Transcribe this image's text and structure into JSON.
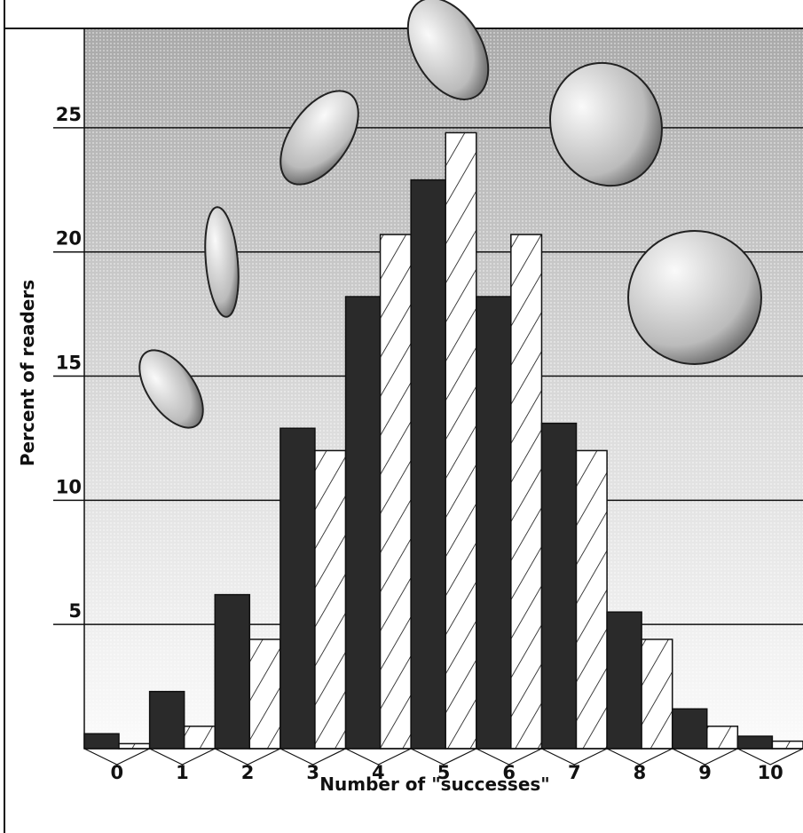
{
  "chart_data": {
    "type": "bar",
    "categories": [
      "0",
      "1",
      "2",
      "3",
      "4",
      "5",
      "6",
      "7",
      "8",
      "9",
      "10"
    ],
    "x_label": "Number of \"successes\"",
    "y_label": "Percent of readers",
    "series": [
      {
        "color": "#2a2a2a",
        "values": [
          0.6,
          2.3,
          6.2,
          12.9,
          18.2,
          22.9,
          18.2,
          13.1,
          5.5,
          1.6,
          0.5
        ]
      },
      {
        "color": "#ffffff",
        "pattern": "hatch",
        "values": [
          0.2,
          0.9,
          4.4,
          12.0,
          20.7,
          24.8,
          20.7,
          12.0,
          4.4,
          0.9,
          0.3
        ]
      }
    ],
    "ylim": [
      0,
      29
    ],
    "yticks": [
      5,
      10,
      15,
      20,
      25
    ],
    "grid": true
  }
}
